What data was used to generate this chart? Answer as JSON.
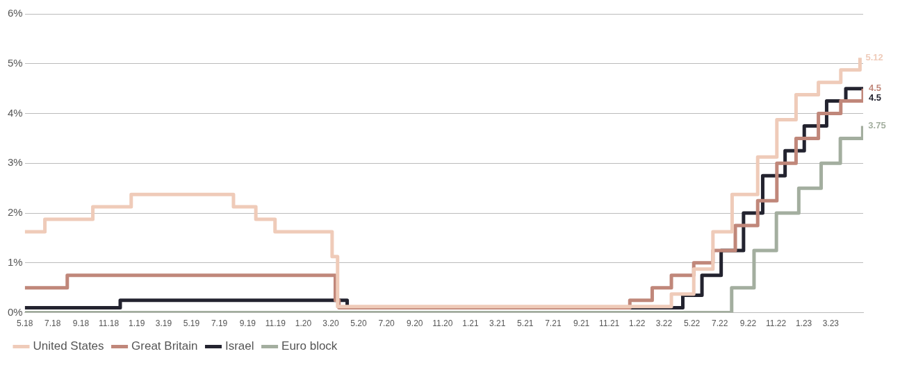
{
  "chart_data": {
    "type": "step",
    "legend": "bottom left",
    "grid": "y",
    "line_style": "solid",
    "marker": "none",
    "xlim": [
      "2018-05-01",
      "2023-05-11"
    ],
    "xticks": [
      {
        "value": "2018-05",
        "label": "5.18"
      },
      {
        "value": "2018-07",
        "label": "7.18"
      },
      {
        "value": "2018-09",
        "label": "9.18"
      },
      {
        "value": "2018-11",
        "label": "11.18"
      },
      {
        "value": "2019-01",
        "label": "1.19"
      },
      {
        "value": "2019-03",
        "label": "3.19"
      },
      {
        "value": "2019-05",
        "label": "5.19"
      },
      {
        "value": "2019-07",
        "label": "7.19"
      },
      {
        "value": "2019-09",
        "label": "9.19"
      },
      {
        "value": "2019-11",
        "label": "11.19"
      },
      {
        "value": "2020-01",
        "label": "1.20"
      },
      {
        "value": "2020-03",
        "label": "3.20"
      },
      {
        "value": "2020-05",
        "label": "5.20"
      },
      {
        "value": "2020-07",
        "label": "7.20"
      },
      {
        "value": "2020-09",
        "label": "9.20"
      },
      {
        "value": "2020-11",
        "label": "11.20"
      },
      {
        "value": "2021-01",
        "label": "1.21"
      },
      {
        "value": "2021-03",
        "label": "3.21"
      },
      {
        "value": "2021-05",
        "label": "5.21"
      },
      {
        "value": "2021-07",
        "label": "7.21"
      },
      {
        "value": "2021-09",
        "label": "9.21"
      },
      {
        "value": "2021-11",
        "label": "11.21"
      },
      {
        "value": "2022-01",
        "label": "1.22"
      },
      {
        "value": "2022-03",
        "label": "3.22"
      },
      {
        "value": "2022-05",
        "label": "5.22"
      },
      {
        "value": "2022-07",
        "label": "7.22"
      },
      {
        "value": "2022-09",
        "label": "9.22"
      },
      {
        "value": "2022-11",
        "label": "11.22"
      },
      {
        "value": "2023-01",
        "label": "1.23"
      },
      {
        "value": "2023-03",
        "label": "3.23"
      }
    ],
    "ylim": [
      0,
      6
    ],
    "yticks": [
      {
        "value": 0,
        "label": "0%"
      },
      {
        "value": 1,
        "label": "1%"
      },
      {
        "value": 2,
        "label": "2%"
      },
      {
        "value": 3,
        "label": "3%"
      },
      {
        "value": 4,
        "label": "4%"
      },
      {
        "value": 5,
        "label": "5%"
      },
      {
        "value": 6,
        "label": "6%"
      }
    ],
    "series": [
      {
        "name": "United States",
        "color": "#efcbb9",
        "x": [
          "2018-05-01",
          "2018-06-14",
          "2018-09-27",
          "2018-12-20",
          "2019-08-01",
          "2019-09-19",
          "2019-10-31",
          "2020-03-04",
          "2020-03-16",
          "2022-03-17",
          "2022-05-05",
          "2022-06-16",
          "2022-07-28",
          "2022-09-22",
          "2022-11-03",
          "2022-12-15",
          "2023-02-02",
          "2023-03-23",
          "2023-05-04"
        ],
        "values": [
          1.625,
          1.875,
          2.125,
          2.375,
          2.125,
          1.875,
          1.625,
          1.125,
          0.125,
          0.375,
          0.875,
          1.625,
          2.375,
          3.125,
          3.875,
          4.375,
          4.625,
          4.875,
          5.12
        ],
        "value_labels": [
          null,
          null,
          null,
          null,
          null,
          null,
          null,
          null,
          null,
          null,
          null,
          null,
          null,
          null,
          null,
          null,
          null,
          null,
          "5.12"
        ]
      },
      {
        "name": "Great Britain",
        "color": "#c0877a",
        "x": [
          "2018-05-01",
          "2018-08-02",
          "2020-03-11",
          "2020-03-19",
          "2021-12-16",
          "2022-02-03",
          "2022-03-17",
          "2022-05-05",
          "2022-06-16",
          "2022-08-04",
          "2022-09-22",
          "2022-11-03",
          "2022-12-15",
          "2023-02-02",
          "2023-03-23",
          "2023-05-11"
        ],
        "values": [
          0.5,
          0.75,
          0.25,
          0.1,
          0.25,
          0.5,
          0.75,
          1.0,
          1.25,
          1.75,
          2.25,
          3.0,
          3.5,
          4.0,
          4.25,
          4.5
        ],
        "value_labels": [
          null,
          null,
          null,
          null,
          null,
          null,
          null,
          null,
          null,
          null,
          null,
          null,
          null,
          null,
          null,
          "4.5"
        ]
      },
      {
        "name": "Israel",
        "color": "#23232f",
        "x": [
          "2018-05-01",
          "2018-11-26",
          "2020-04-06",
          "2022-04-11",
          "2022-05-23",
          "2022-07-04",
          "2022-08-22",
          "2022-10-03",
          "2022-11-21",
          "2023-01-02",
          "2023-02-20",
          "2023-04-03",
          "2023-05-11"
        ],
        "values": [
          0.1,
          0.25,
          0.1,
          0.35,
          0.75,
          1.25,
          2.0,
          2.75,
          3.25,
          3.75,
          4.25,
          4.5,
          4.5
        ],
        "value_labels": [
          null,
          null,
          null,
          null,
          null,
          null,
          null,
          null,
          null,
          null,
          null,
          null,
          "4.5"
        ]
      },
      {
        "name": "Euro block",
        "color": "#a3ae9f",
        "x": [
          "2018-05-01",
          "2022-07-27",
          "2022-09-14",
          "2022-11-02",
          "2022-12-21",
          "2023-02-08",
          "2023-03-22",
          "2023-05-10"
        ],
        "values": [
          0,
          0.5,
          1.25,
          2.0,
          2.5,
          3.0,
          3.5,
          3.75
        ],
        "value_labels": [
          null,
          null,
          null,
          null,
          null,
          null,
          null,
          "3.75"
        ]
      }
    ]
  }
}
